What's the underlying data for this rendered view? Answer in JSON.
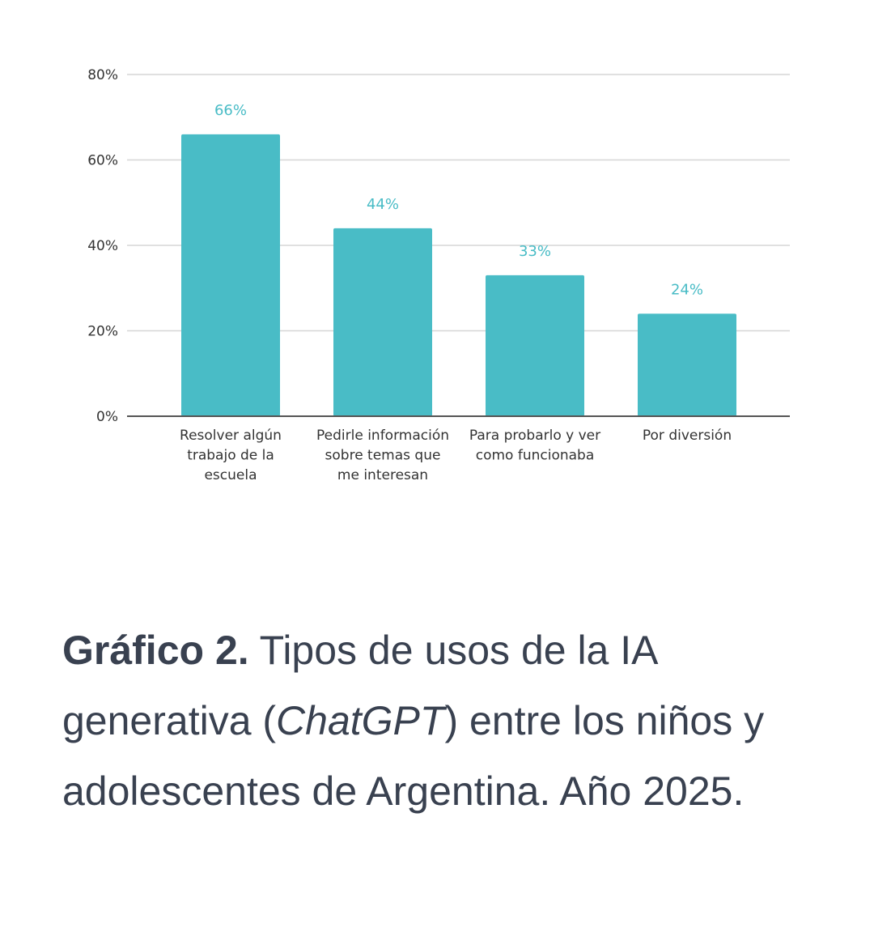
{
  "chart_data": {
    "type": "bar",
    "categories": [
      [
        "Resolver algún",
        "trabajo de la",
        "escuela"
      ],
      [
        "Pedirle información",
        "sobre temas que",
        "me interesan"
      ],
      [
        "Para probarlo y ver",
        "como funcionaba"
      ],
      [
        "Por diversión"
      ]
    ],
    "values": [
      66,
      44,
      33,
      24
    ],
    "value_labels": [
      "66%",
      "44%",
      "33%",
      "24%"
    ],
    "y_ticks": [
      0,
      20,
      40,
      60,
      80
    ],
    "y_tick_labels": [
      "0%",
      "20%",
      "40%",
      "60%",
      "80%"
    ],
    "ylim": [
      0,
      80
    ],
    "grid": true,
    "bar_color": "#49bcc6",
    "label_color": "#49bcc6",
    "title": "",
    "xlabel": "",
    "ylabel": ""
  },
  "caption": {
    "bold": "Gráfico 2.",
    "text_before_italic": " Tipos de usos de la IA generativa (",
    "italic": "ChatGPT",
    "text_after_italic": ") entre los niños y adolescentes de Argentina. Año 2025."
  },
  "colors": {
    "caption_text": "#394150",
    "gridline": "#d6d6d6",
    "axis": "#555555"
  }
}
